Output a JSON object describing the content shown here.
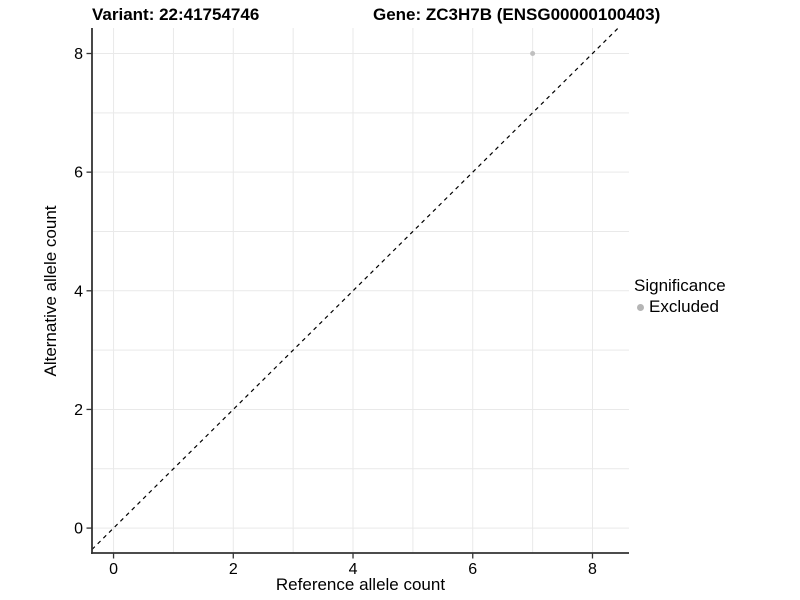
{
  "chart_data": {
    "type": "scatter",
    "title_left": "Variant: 22:41754746",
    "title_right": "Gene: ZC3H7B (ENSG00000100403)",
    "xlabel": "Reference allele count",
    "ylabel": "Alternative allele count",
    "xlim": [
      -0.36,
      8.61
    ],
    "ylim": [
      -0.42,
      8.43
    ],
    "x_ticks": [
      0,
      2,
      4,
      6,
      8
    ],
    "y_ticks": [
      0,
      2,
      4,
      6,
      8
    ],
    "grid_step": 1,
    "grid": true,
    "points": [
      {
        "x": 7,
        "y": 8,
        "significance": "Excluded"
      }
    ],
    "reference_line": {
      "slope": 1,
      "intercept": 0,
      "style": "dashed",
      "color": "#000000"
    },
    "legend": {
      "title": "Significance",
      "position": "right",
      "entries": [
        {
          "label": "Excluded",
          "color": "#b5b5b5",
          "marker": "circle"
        }
      ]
    },
    "colors": {
      "point": "#c0c0c0",
      "grid": "#e9e9e9",
      "axis": "#333333",
      "text": "#000000",
      "background": "#ffffff"
    }
  }
}
